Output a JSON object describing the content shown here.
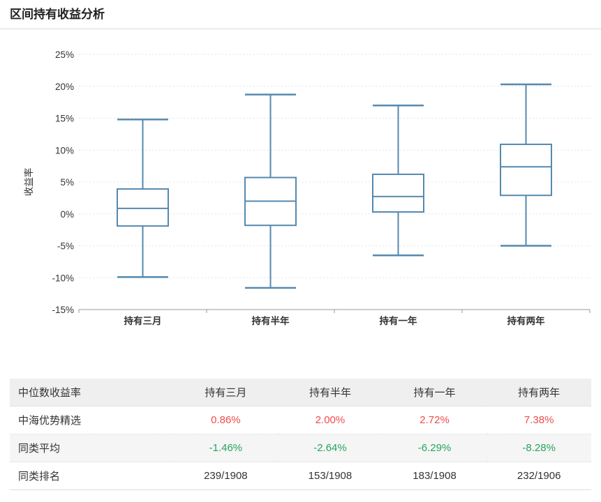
{
  "page": {
    "title": "区间持有收益分析"
  },
  "chart_data": {
    "type": "boxplot",
    "title": "",
    "xlabel": "",
    "ylabel": "收益率",
    "categories": [
      "持有三月",
      "持有半年",
      "持有一年",
      "持有两年"
    ],
    "y_axis": {
      "min": -15,
      "max": 25,
      "tick_step": 5,
      "unit": "%",
      "tick_labels": [
        "25%",
        "20%",
        "15%",
        "10%",
        "5%",
        "0%",
        "-5%",
        "-10%",
        "-15%"
      ]
    },
    "grid": "horizontal dotted gridlines on",
    "legend": "none",
    "series": [
      {
        "name": "持有三月",
        "low": -9.9,
        "q1": -1.9,
        "median": 0.86,
        "q3": 3.9,
        "high": 14.8
      },
      {
        "name": "持有半年",
        "low": -11.6,
        "q1": -1.8,
        "median": 2.0,
        "q3": 5.7,
        "high": 18.7
      },
      {
        "name": "持有一年",
        "low": -6.5,
        "q1": 0.3,
        "median": 2.72,
        "q3": 6.2,
        "high": 17.0
      },
      {
        "name": "持有两年",
        "low": -5.0,
        "q1": 2.9,
        "median": 7.38,
        "q3": 10.9,
        "high": 20.3
      }
    ],
    "colors": {
      "box_stroke": "#5589af",
      "grid_line": "#e4e4e4",
      "axis_line": "#999999",
      "tick_text": "#333333"
    }
  },
  "table": {
    "header": [
      "中位数收益率",
      "持有三月",
      "持有半年",
      "持有一年",
      "持有两年"
    ],
    "rows": [
      {
        "label": "中海优势精选",
        "values": [
          "0.86%",
          "2.00%",
          "2.72%",
          "7.38%"
        ],
        "value_color": "#ee4c4c"
      },
      {
        "label": "同类平均",
        "values": [
          "-1.46%",
          "-2.64%",
          "-6.29%",
          "-8.28%"
        ],
        "value_color": "#27a35f"
      },
      {
        "label": "同类排名",
        "values": [
          "239/1908",
          "153/1908",
          "183/1908",
          "232/1906"
        ],
        "value_color": "#333333"
      }
    ]
  }
}
